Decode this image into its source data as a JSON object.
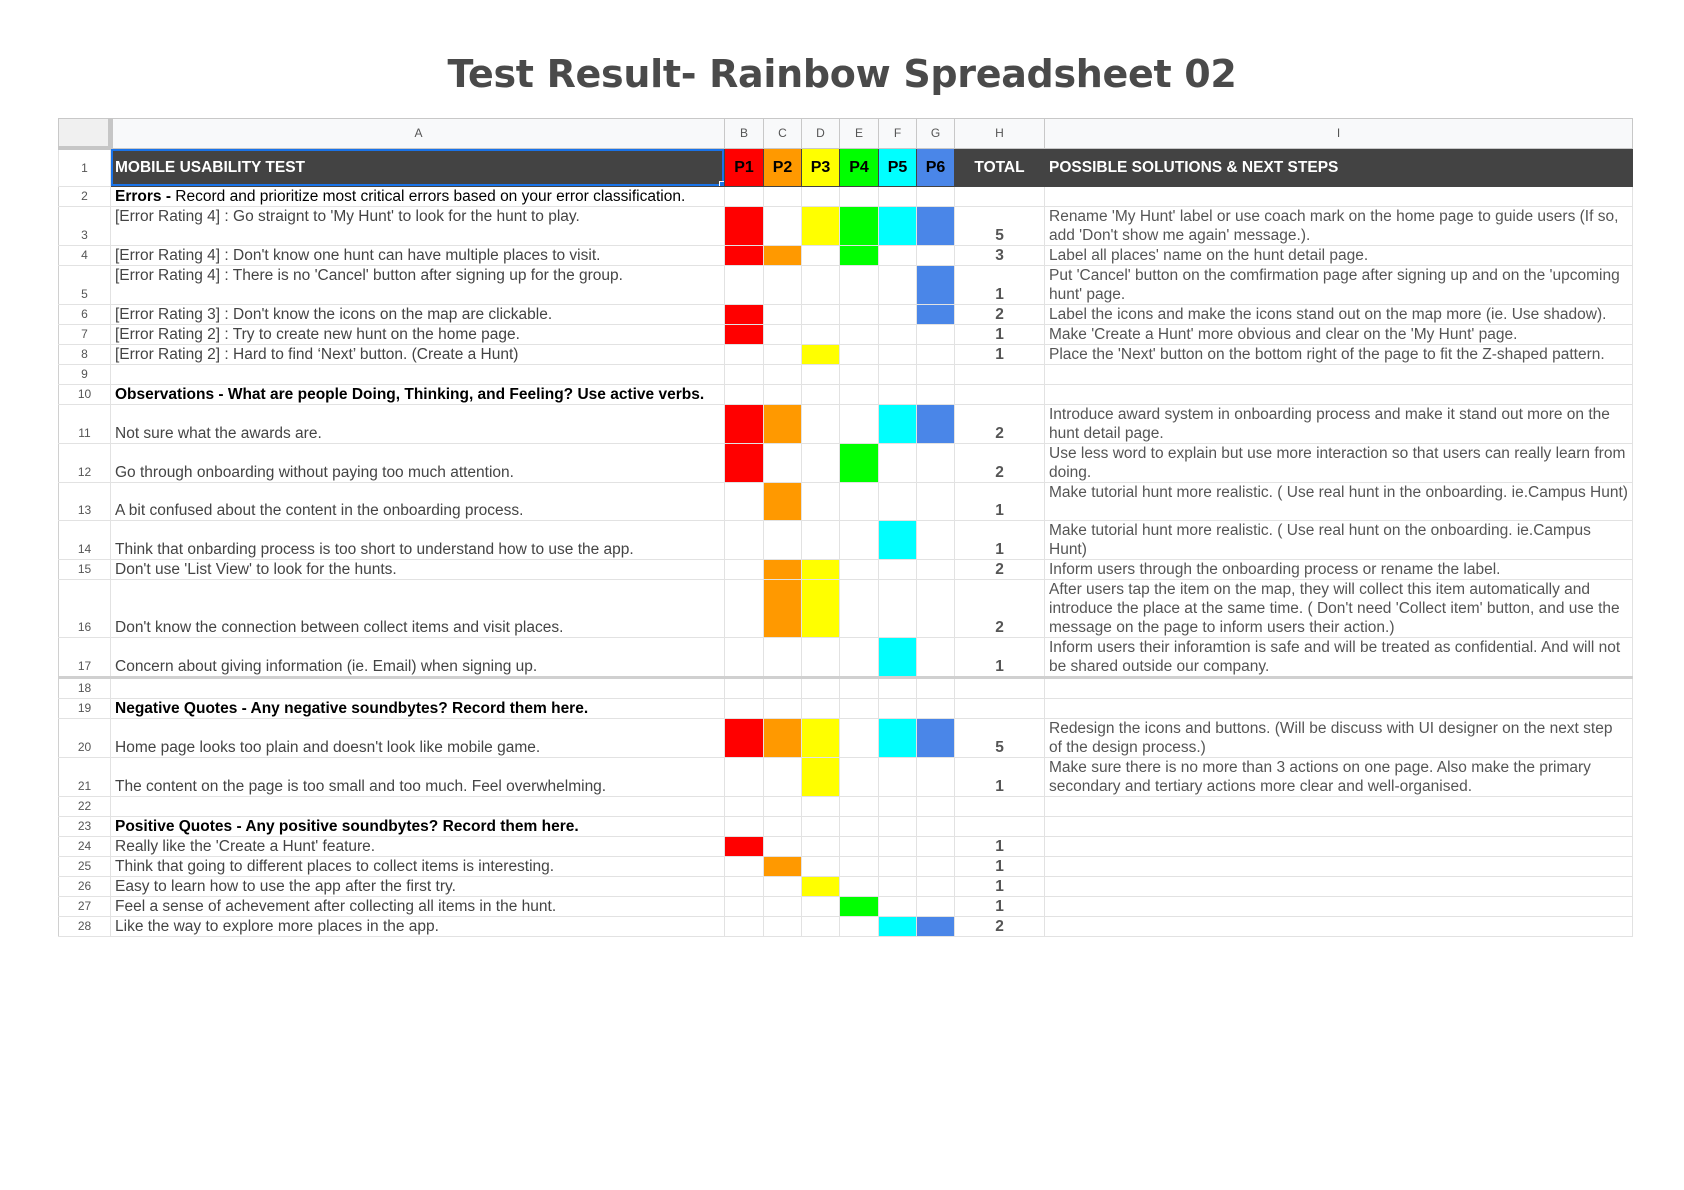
{
  "title": "Test Result- Rainbow Spreadsheet 02",
  "columns": [
    "A",
    "B",
    "C",
    "D",
    "E",
    "F",
    "G",
    "H",
    "I"
  ],
  "participant_colors": {
    "P1": "#ff0000",
    "P2": "#ff9900",
    "P3": "#ffff00",
    "P4": "#00ff00",
    "P5": "#00ffff",
    "P6": "#4a86e8"
  },
  "header": {
    "row": "1",
    "a": "MOBILE USABILITY TEST",
    "participants": [
      "P1",
      "P2",
      "P3",
      "P4",
      "P5",
      "P6"
    ],
    "total": "TOTAL",
    "solutions": "POSSIBLE SOLUTIONS & NEXT STEPS"
  },
  "rows": [
    {
      "n": "2",
      "type": "section",
      "bold": "Errors -",
      "text": " Record and prioritize most critical errors based on your error classification."
    },
    {
      "n": "3",
      "text": "[Error Rating 4] : Go straignt to 'My Hunt' to look for the hunt to play.",
      "valign": "top",
      "p": [
        1,
        0,
        1,
        1,
        1,
        1
      ],
      "total": "5",
      "sol": "Rename 'My Hunt' label or use coach mark on the home page to guide users (If so, add 'Don't show me again' message.).",
      "h": 2
    },
    {
      "n": "4",
      "text": "[Error Rating 4] : Don't know one hunt can have multiple places to visit.",
      "p": [
        1,
        1,
        0,
        1,
        0,
        0
      ],
      "total": "3",
      "sol": "Label all places' name on the hunt detail page."
    },
    {
      "n": "5",
      "text": "[Error Rating 4] : There is no 'Cancel' button after signing up for the group.",
      "valign": "top",
      "p": [
        0,
        0,
        0,
        0,
        0,
        1
      ],
      "total": "1",
      "sol": "Put 'Cancel' button on the comfirmation page after signing up and on the 'upcoming hunt' page.",
      "h": 2
    },
    {
      "n": "6",
      "text": "[Error Rating 3] : Don't know the icons on the map are clickable.",
      "p": [
        1,
        0,
        0,
        0,
        0,
        1
      ],
      "total": "2",
      "sol": "Label the icons and make the icons stand out on the map more (ie. Use shadow)."
    },
    {
      "n": "7",
      "text": "[Error Rating 2] : Try to create new hunt on the home page.",
      "p": [
        1,
        0,
        0,
        0,
        0,
        0
      ],
      "total": "1",
      "sol": "Make 'Create a Hunt' more obvious and clear on the 'My Hunt' page."
    },
    {
      "n": "8",
      "text": "[Error Rating 2] : Hard to find ‘Next’ button. (Create a Hunt)",
      "p": [
        0,
        0,
        1,
        0,
        0,
        0
      ],
      "total": "1",
      "sol": "Place the 'Next' button on the bottom right of the page to fit the Z-shaped pattern."
    },
    {
      "n": "9",
      "type": "blank"
    },
    {
      "n": "10",
      "type": "section",
      "bold": "Observations - What are people Doing, Thinking, and Feeling? Use active verbs.",
      "text": ""
    },
    {
      "n": "11",
      "text": "Not sure what the awards are.",
      "p": [
        1,
        1,
        0,
        0,
        1,
        1
      ],
      "total": "2",
      "sol": "Introduce award system in onboarding process and make it stand out more on the hunt detail page.",
      "h": 2
    },
    {
      "n": "12",
      "text": "Go through onboarding without paying too much attention.",
      "p": [
        1,
        0,
        0,
        1,
        0,
        0
      ],
      "total": "2",
      "sol": "Use less word to explain but use more interaction so that users can really learn from doing.",
      "h": 2
    },
    {
      "n": "13",
      "text": "A bit confused about the content in the onboarding process.",
      "p": [
        0,
        1,
        0,
        0,
        0,
        0
      ],
      "total": "1",
      "sol": "Make tutorial hunt more realistic. ( Use real hunt in the onboarding. ie.Campus Hunt)",
      "h": 2
    },
    {
      "n": "14",
      "text": "Think that onbarding process is too short to understand how to use the app.",
      "p": [
        0,
        0,
        0,
        0,
        1,
        0
      ],
      "total": "1",
      "sol": "Make tutorial hunt more realistic. ( Use real hunt on the onboarding. ie.Campus Hunt)",
      "h": 2
    },
    {
      "n": "15",
      "text": "Don't use 'List View' to look for the hunts.",
      "p": [
        0,
        1,
        1,
        0,
        0,
        0
      ],
      "total": "2",
      "sol": "Inform users through the onboarding process or rename the label."
    },
    {
      "n": "16",
      "text": "Don't know the connection between collect items and visit places.",
      "p": [
        0,
        1,
        1,
        0,
        0,
        0
      ],
      "total": "2",
      "sol": "After users tap the item on the map, they will collect this item automatically and introduce the place at the same time. ( Don't need 'Collect item' button, and use the message on the page to inform users their action.)",
      "h": 3
    },
    {
      "n": "17",
      "text": "Concern about giving information (ie. Email) when signing up.",
      "p": [
        0,
        0,
        0,
        0,
        1,
        0
      ],
      "total": "1",
      "sol": "Inform users their inforamtion is safe and will be treated as confidential. And will not be shared outside our company.",
      "h": 2
    },
    {
      "n": "18",
      "type": "blank",
      "cls": "r18"
    },
    {
      "n": "19",
      "type": "section",
      "bold": "Negative Quotes - Any negative soundbytes? Record them here.",
      "text": ""
    },
    {
      "n": "20",
      "text": "Home page looks too plain and doesn't look like mobile game.",
      "p": [
        1,
        1,
        1,
        0,
        1,
        1
      ],
      "total": "5",
      "sol": "Redesign the icons and buttons. (Will be discuss with UI designer on the next step of the design process.)",
      "h": 2
    },
    {
      "n": "21",
      "text": "The content on the page is too small and too much. Feel overwhelming.",
      "p": [
        0,
        0,
        1,
        0,
        0,
        0
      ],
      "total": "1",
      "sol": "Make sure there is no more than 3 actions on one page. Also make the primary secondary and tertiary actions more clear and well-organised.",
      "h": 2
    },
    {
      "n": "22",
      "type": "blank"
    },
    {
      "n": "23",
      "type": "section",
      "bold": "Positive Quotes - Any positive soundbytes? Record them here.",
      "text": ""
    },
    {
      "n": "24",
      "text": "Really like the 'Create a Hunt' feature.",
      "p": [
        1,
        0,
        0,
        0,
        0,
        0
      ],
      "total": "1",
      "sol": ""
    },
    {
      "n": "25",
      "text": "Think that going to different places to collect items is interesting.",
      "p": [
        0,
        1,
        0,
        0,
        0,
        0
      ],
      "total": "1",
      "sol": ""
    },
    {
      "n": "26",
      "text": "Easy to learn how to use the app after the first try.",
      "p": [
        0,
        0,
        1,
        0,
        0,
        0
      ],
      "total": "1",
      "sol": ""
    },
    {
      "n": "27",
      "text": "Feel a sense of achevement after collecting all items in the hunt.",
      "p": [
        0,
        0,
        0,
        1,
        0,
        0
      ],
      "total": "1",
      "sol": ""
    },
    {
      "n": "28",
      "text": "Like the way to explore more places in the app.",
      "p": [
        0,
        0,
        0,
        0,
        1,
        1
      ],
      "total": "2",
      "sol": ""
    }
  ]
}
